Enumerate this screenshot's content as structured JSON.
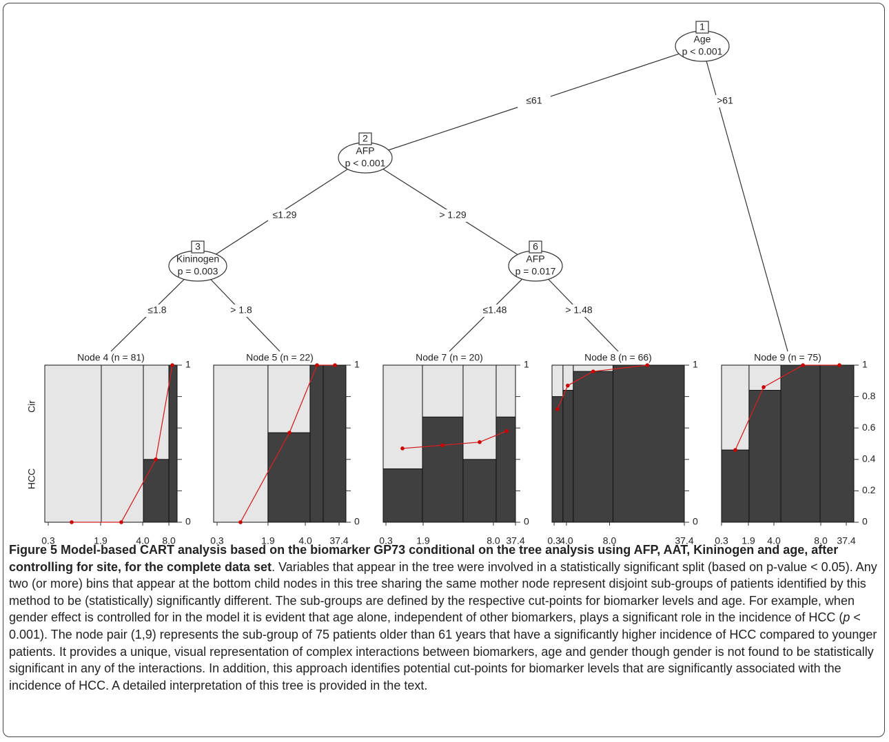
{
  "figure": {
    "tree": {
      "inner_nodes": [
        {
          "id": 1,
          "variable": "Age",
          "p": "p < 0.001"
        },
        {
          "id": 2,
          "variable": "AFP",
          "p": "p < 0.001"
        },
        {
          "id": 3,
          "variable": "Kininogen",
          "p": "p = 0.003"
        },
        {
          "id": 6,
          "variable": "AFP",
          "p": "p = 0.017"
        }
      ],
      "edges": [
        {
          "from": 1,
          "to": 2,
          "label": "≤61"
        },
        {
          "from": 1,
          "to": 9,
          "label": ">61"
        },
        {
          "from": 2,
          "to": 3,
          "label": "≤1.29"
        },
        {
          "from": 2,
          "to": 6,
          "label": "> 1.29"
        },
        {
          "from": 3,
          "to": 4,
          "label": "≤1.8"
        },
        {
          "from": 3,
          "to": 5,
          "label": "> 1.8"
        },
        {
          "from": 6,
          "to": 7,
          "label": "≤1.48"
        },
        {
          "from": 6,
          "to": 8,
          "label": "> 1.48"
        }
      ]
    },
    "y_labels": [
      "Cir",
      "HCC"
    ],
    "panels": [
      {
        "node": 4,
        "title": "Node 4 (n = 81)",
        "xlim": [
          0,
          1
        ],
        "ylim": [
          0,
          1
        ],
        "edges": [
          0,
          0.427,
          0.745,
          0.938,
          1
        ],
        "hcc": [
          0,
          0,
          0.4,
          1
        ],
        "points_x": [
          0.203,
          0.578,
          0.839,
          0.964
        ],
        "points_y": [
          0,
          0,
          0.4,
          1
        ],
        "xticks": [
          {
            "value": 0.026,
            "label": "0.3"
          },
          {
            "value": 0.422,
            "label": "1.9"
          },
          {
            "value": 0.74,
            "label": "4.0"
          },
          {
            "value": 0.938,
            "label": "8.0"
          }
        ],
        "yticks": [
          0,
          {
            "value": 0.2,
            "label": null
          },
          {
            "value": 0.4,
            "label": null
          },
          {
            "value": 0.6,
            "label": null
          },
          {
            "value": 0.8,
            "label": null
          },
          1
        ]
      },
      {
        "node": 5,
        "title": "Node 5 (n = 22)",
        "xlim": [
          0,
          1
        ],
        "ylim": [
          0,
          1
        ],
        "edges": [
          0,
          0.411,
          0.729,
          0.828,
          1
        ],
        "hcc": [
          0,
          0.57,
          1,
          1
        ],
        "points_x": [
          0.203,
          0.573,
          0.781,
          0.917
        ],
        "points_y": [
          0,
          0.57,
          1,
          1
        ],
        "xticks": [
          {
            "value": 0.026,
            "label": "0.3"
          },
          {
            "value": 0.411,
            "label": "1.9"
          },
          {
            "value": 0.693,
            "label": "4.0"
          },
          {
            "value": 0.948,
            "label": "37.4"
          }
        ],
        "yticks": [
          0,
          {
            "value": 0.2,
            "label": null
          },
          {
            "value": 0.4,
            "label": null
          },
          {
            "value": 0.6,
            "label": null
          },
          {
            "value": 0.8,
            "label": null
          },
          1
        ]
      },
      {
        "node": 7,
        "title": "Node 7 (n = 20)",
        "xlim": [
          0,
          1
        ],
        "ylim": [
          0,
          1
        ],
        "edges": [
          0,
          0.297,
          0.604,
          0.854,
          1
        ],
        "hcc": [
          0.34,
          0.67,
          0.4,
          0.67
        ],
        "points_x": [
          0.146,
          0.448,
          0.729,
          0.932
        ],
        "points_y": [
          0.47,
          0.49,
          0.51,
          0.58
        ],
        "xticks": [
          {
            "value": 0.021,
            "label": "0.3"
          },
          {
            "value": 0.302,
            "label": "1.9"
          },
          {
            "value": 0.833,
            "label": "8.0"
          },
          {
            "value": 1,
            "label": "37.4"
          }
        ],
        "yticks": [
          0,
          {
            "value": 0.2,
            "label": null
          },
          {
            "value": 0.4,
            "label": null
          },
          {
            "value": 0.6,
            "label": null
          },
          {
            "value": 0.8,
            "label": null
          },
          1
        ]
      },
      {
        "node": 8,
        "title": "Node 8 (n = 66)",
        "xlim": [
          0,
          1
        ],
        "ylim": [
          0,
          1
        ],
        "edges": [
          0,
          0.083,
          0.161,
          0.461,
          1
        ],
        "hcc": [
          0.8,
          0.84,
          0.96,
          1
        ],
        "points_x": [
          0.041,
          0.119,
          0.311,
          0.72
        ],
        "points_y": [
          0.72,
          0.87,
          0.96,
          1
        ],
        "xticks": [
          {
            "value": 0.016,
            "label": "0.3"
          },
          {
            "value": 0.109,
            "label": "4.0"
          },
          {
            "value": 0.435,
            "label": "8.0"
          },
          {
            "value": 1,
            "label": "37.4"
          }
        ],
        "yticks": [
          0,
          {
            "value": 0.2,
            "label": null
          },
          {
            "value": 0.4,
            "label": null
          },
          {
            "value": 0.6,
            "label": null
          },
          {
            "value": 0.8,
            "label": null
          },
          1
        ]
      },
      {
        "node": 9,
        "title": "Node 9 (n = 75)",
        "xlim": [
          0,
          1
        ],
        "ylim": [
          0,
          1
        ],
        "edges": [
          0,
          0.208,
          0.448,
          0.745,
          1
        ],
        "hcc": [
          0.46,
          0.84,
          1,
          1
        ],
        "points_x": [
          0.104,
          0.318,
          0.615,
          0.891
        ],
        "points_y": [
          0.46,
          0.86,
          1,
          1
        ],
        "xticks": [
          {
            "value": 0,
            "label": "0.3"
          },
          {
            "value": 0.203,
            "label": "1.9"
          },
          {
            "value": 0.396,
            "label": "4.0"
          },
          {
            "value": 0.75,
            "label": "8.0"
          },
          {
            "value": 0.943,
            "label": "37.4"
          }
        ],
        "yticks": [
          0,
          0.2,
          0.4,
          0.6,
          0.8,
          1
        ]
      }
    ],
    "caption": {
      "label": "Figure 5",
      "title": "Model-based CART analysis based on the biomarker GP73 conditional on the tree analysis using AFP, AAT, Kininogen and age, after controlling for site, for the complete data set",
      "body_1": ". Variables that appear in the tree were involved in a statistically significant split (based on p-value < 0.05). Any two (or more) bins that appear at the bottom child nodes in this tree sharing the same mother node represent disjoint sub-groups of patients identified by this method to be (statistically) significantly different. The sub-groups are defined by the respective cut-points for biomarker levels and age. For example, when gender effect is controlled for in the model it is evident that age alone, independent of other biomarkers, plays a significant role in the incidence of HCC (",
      "italic": "p",
      "body_2": " < 0.001). The node pair (1,9) represents the sub-group of 75 patients older than 61 years that have a significantly higher incidence of HCC compared to younger patients. It provides a unique, visual representation of complex interactions between biomarkers, age and gender though gender is not found to be statistically significant in any of the interactions. In addition, this approach identifies potential cut-points for biomarker levels that are significantly associated with the incidence of HCC. A detailed interpretation of this tree is provided in the text."
    }
  }
}
